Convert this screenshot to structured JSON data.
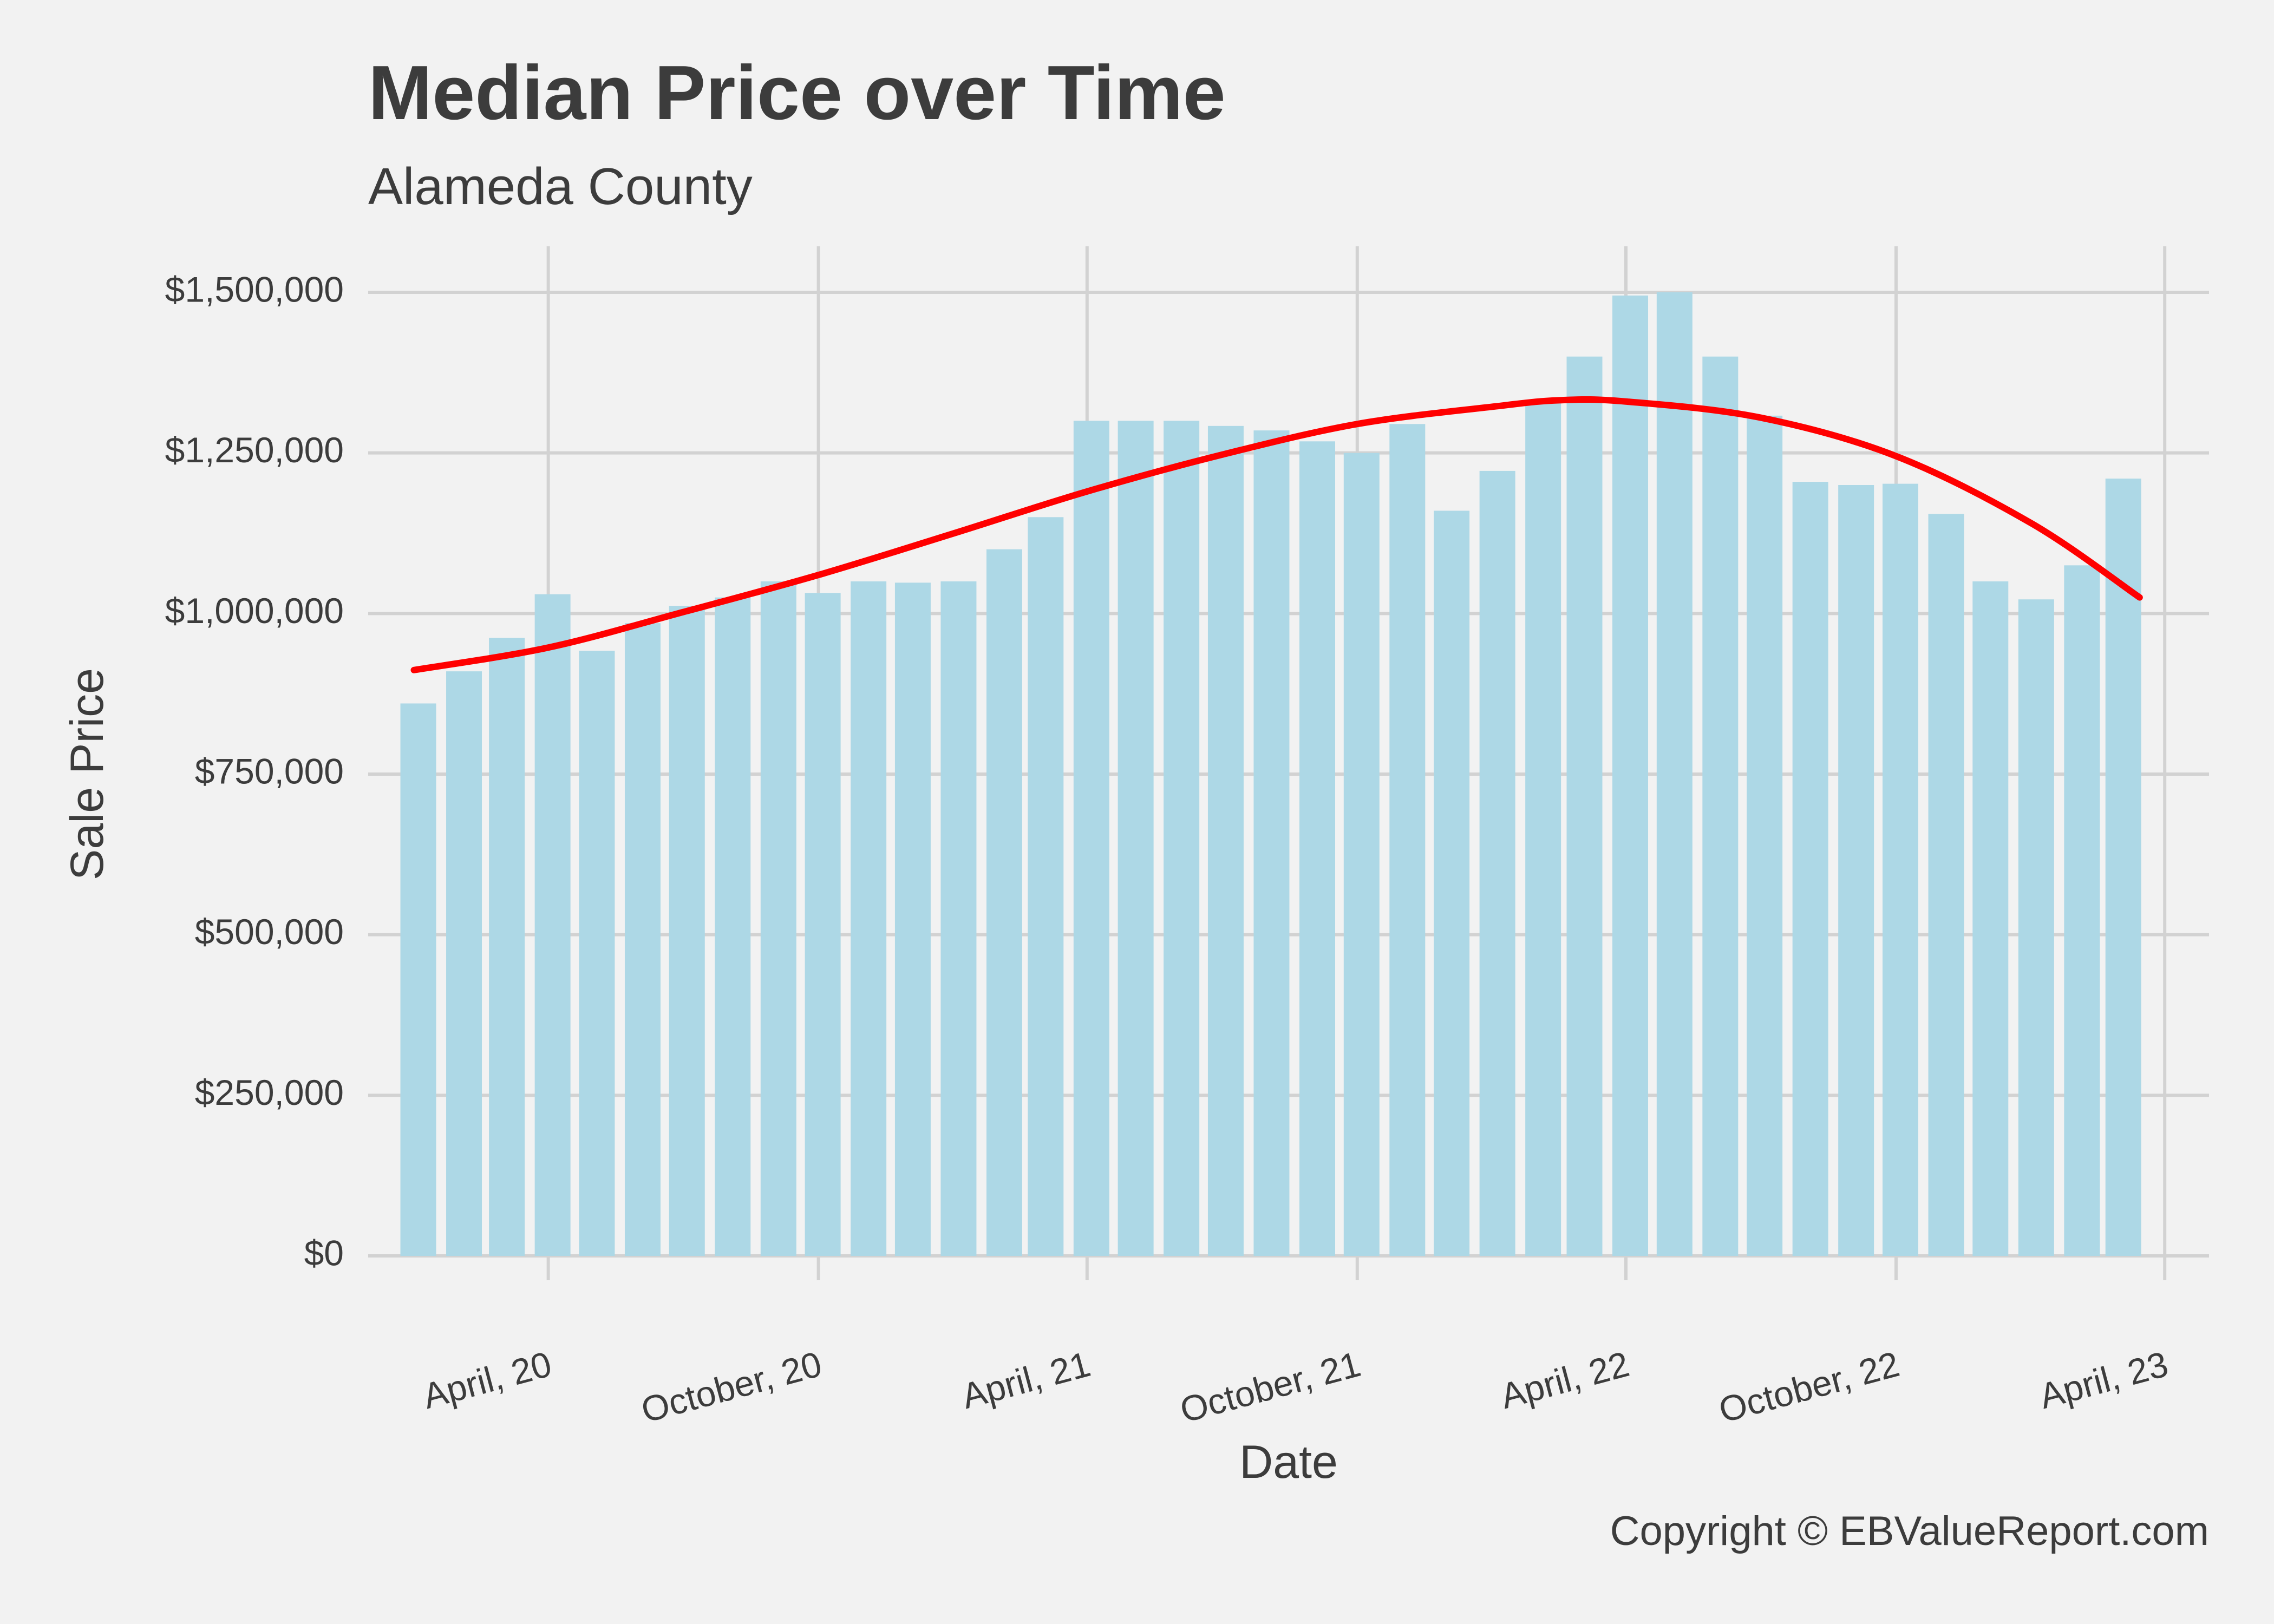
{
  "chart_data": {
    "type": "bar",
    "title": "Median Price over Time",
    "subtitle": "Alameda County",
    "xlabel": "Date",
    "ylabel": "Sale Price",
    "caption": "Copyright  © EBValueReport.com",
    "x_is_date": true,
    "ylim": [
      0,
      1500000
    ],
    "y_ticks": [
      {
        "value": 0,
        "label": "$0"
      },
      {
        "value": 250000,
        "label": "$250,000"
      },
      {
        "value": 500000,
        "label": "$500,000"
      },
      {
        "value": 750000,
        "label": "$750,000"
      },
      {
        "value": 1000000,
        "label": "$1,000,000"
      },
      {
        "value": 1250000,
        "label": "$1,250,000"
      },
      {
        "value": 1500000,
        "label": "$1,500,000"
      }
    ],
    "x_ticks": [
      {
        "date": "2020-04-01",
        "label": "April, 20"
      },
      {
        "date": "2020-10-01",
        "label": "October, 20"
      },
      {
        "date": "2021-04-01",
        "label": "April, 21"
      },
      {
        "date": "2021-10-01",
        "label": "October, 21"
      },
      {
        "date": "2022-04-01",
        "label": "April, 22"
      },
      {
        "date": "2022-10-01",
        "label": "October, 22"
      },
      {
        "date": "2023-04-01",
        "label": "April, 23"
      }
    ],
    "x_range": [
      "2019-12-01",
      "2023-05-01"
    ],
    "series": [
      {
        "type": "bar",
        "color": "#add8e6",
        "dates": [
          "2020-01",
          "2020-02",
          "2020-03",
          "2020-04",
          "2020-05",
          "2020-06",
          "2020-07",
          "2020-08",
          "2020-09",
          "2020-10",
          "2020-11",
          "2020-12",
          "2021-01",
          "2021-02",
          "2021-03",
          "2021-04",
          "2021-05",
          "2021-06",
          "2021-07",
          "2021-08",
          "2021-09",
          "2021-10",
          "2021-11",
          "2021-12",
          "2022-01",
          "2022-02",
          "2022-03",
          "2022-04",
          "2022-05",
          "2022-06",
          "2022-07",
          "2022-08",
          "2022-09",
          "2022-10",
          "2022-11",
          "2022-12",
          "2023-01",
          "2023-02",
          "2023-03"
        ],
        "values": [
          860000,
          910000,
          962000,
          1030000,
          942000,
          985000,
          1012000,
          1025000,
          1050000,
          1032000,
          1050000,
          1048000,
          1050000,
          1100000,
          1150000,
          1300000,
          1300000,
          1300000,
          1292000,
          1285000,
          1268000,
          1250000,
          1295000,
          1160000,
          1222000,
          1330000,
          1400000,
          1495000,
          1500000,
          1400000,
          1308000,
          1205000,
          1200000,
          1202000,
          1155000,
          1050000,
          1022000,
          1075000,
          1210000
        ]
      },
      {
        "type": "smooth",
        "color": "#ff0000",
        "dates": [
          "2020-01-01",
          "2020-04-01",
          "2020-07-01",
          "2020-10-01",
          "2021-01-01",
          "2021-04-01",
          "2021-07-01",
          "2021-10-01",
          "2022-01-01",
          "2022-02-15",
          "2022-04-01",
          "2022-07-01",
          "2022-10-01",
          "2023-01-01",
          "2023-03-15"
        ],
        "values": [
          912000,
          947000,
          1002000,
          1060000,
          1125000,
          1190000,
          1247000,
          1295000,
          1322000,
          1332000,
          1330000,
          1305000,
          1245000,
          1140000,
          1025000
        ]
      }
    ]
  }
}
